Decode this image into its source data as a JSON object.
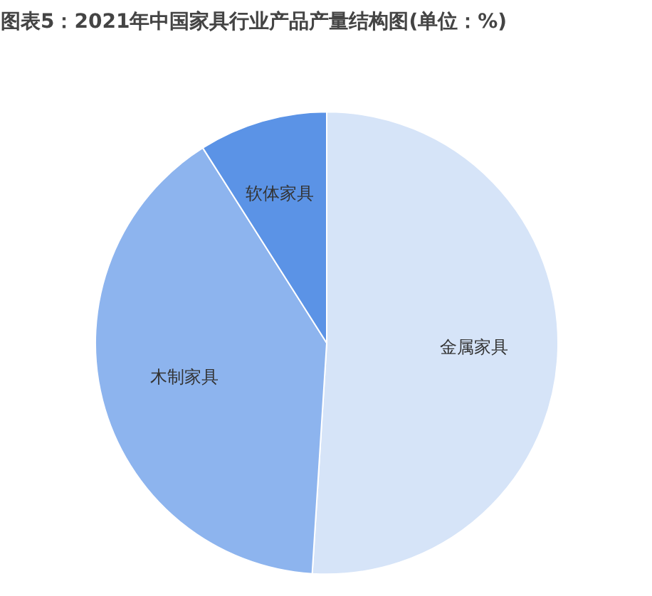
{
  "chart_data": {
    "type": "pie",
    "title": "图表5：2021年中国家具行业产品产量结构图(单位：%)",
    "categories": [
      "金属家具",
      "木制家具",
      "软体家具"
    ],
    "values": [
      51,
      40,
      9
    ],
    "colors": [
      "#d6e4f8",
      "#8db4ee",
      "#5b93e6"
    ]
  }
}
